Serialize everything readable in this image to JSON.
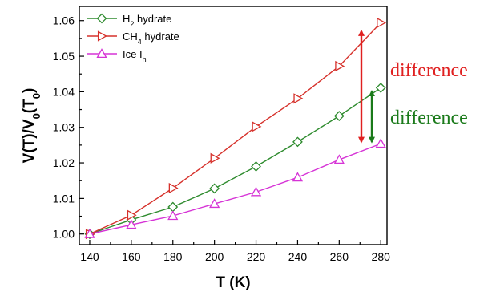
{
  "chart_data": {
    "type": "line",
    "title": "",
    "xlabel": "T (K)",
    "ylabel_parts": [
      "V(T)/V",
      "0",
      "(T",
      "0",
      ")"
    ],
    "xlim": [
      135,
      283
    ],
    "ylim": [
      0.997,
      1.064
    ],
    "x_ticks": [
      140,
      160,
      180,
      200,
      220,
      240,
      260,
      280
    ],
    "y_ticks": [
      1.0,
      1.01,
      1.02,
      1.03,
      1.04,
      1.05,
      1.06
    ],
    "grid": false,
    "legend_position": "top-left",
    "series": [
      {
        "name_parts": [
          "H",
          "2",
          " hydrate"
        ],
        "color": "#2e8b2e",
        "marker": "diamond",
        "x": [
          140,
          160,
          180,
          200,
          220,
          240,
          260,
          280
        ],
        "y": [
          1.0,
          1.004,
          1.0076,
          1.0128,
          1.019,
          1.0259,
          1.0332,
          1.0411
        ]
      },
      {
        "name_parts": [
          "CH",
          "4",
          " hydrate"
        ],
        "color": "#d6312b",
        "marker": "triangle-right",
        "x": [
          140,
          160,
          180,
          200,
          220,
          240,
          260,
          280
        ],
        "y": [
          1.0,
          1.0053,
          1.0129,
          1.0213,
          1.0302,
          1.0381,
          1.0472,
          1.0594
        ]
      },
      {
        "name_parts": [
          "Ice I",
          "h",
          ""
        ],
        "color": "#d633d6",
        "marker": "triangle-up",
        "x": [
          140,
          160,
          180,
          200,
          220,
          240,
          260,
          280
        ],
        "y": [
          1.0,
          1.0026,
          1.0051,
          1.0085,
          1.0118,
          1.0159,
          1.0209,
          1.0254
        ]
      }
    ],
    "annotations": [
      {
        "text": "difference",
        "color": "#e02020",
        "y_from": 1.0255,
        "y_to": 1.0575,
        "x": 270
      },
      {
        "text": "difference",
        "color": "#1a7a1a",
        "y_from": 1.0255,
        "y_to": 1.0405,
        "x": 272
      }
    ]
  }
}
